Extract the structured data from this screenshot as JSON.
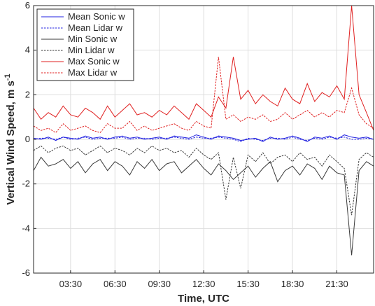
{
  "chart_data": {
    "type": "line",
    "xlabel": "Time, UTC",
    "ylabel": {
      "main": "Vertical Wind Speed, m s",
      "superscript": "-1"
    },
    "xlim": [
      "01:00",
      "23:59"
    ],
    "ylim": [
      -6,
      6
    ],
    "yticks": [
      -6,
      -4,
      -2,
      0,
      2,
      4,
      6
    ],
    "xticks": [
      "03:30",
      "06:30",
      "09:30",
      "12:30",
      "15:30",
      "18:30",
      "21:30"
    ],
    "grid": true,
    "legend_position": "top-left",
    "x": [
      "01:00",
      "01:30",
      "02:00",
      "02:30",
      "03:00",
      "03:30",
      "04:00",
      "04:30",
      "05:00",
      "05:30",
      "06:00",
      "06:30",
      "07:00",
      "07:30",
      "08:00",
      "08:30",
      "09:00",
      "09:30",
      "10:00",
      "10:30",
      "11:00",
      "11:30",
      "12:00",
      "12:30",
      "13:00",
      "13:30",
      "14:00",
      "14:30",
      "15:00",
      "15:30",
      "16:00",
      "16:30",
      "17:00",
      "17:30",
      "18:00",
      "18:30",
      "19:00",
      "19:30",
      "20:00",
      "20:30",
      "21:00",
      "21:30",
      "22:00",
      "22:30",
      "23:00",
      "23:30",
      "23:59"
    ],
    "series": [
      {
        "name": "Mean Sonic w",
        "color": "#2020e0",
        "dash": "solid",
        "values": [
          0.05,
          0.0,
          0.1,
          -0.05,
          0.1,
          0.05,
          0.0,
          0.15,
          0.05,
          0.1,
          0.0,
          0.1,
          0.15,
          0.05,
          0.1,
          0.0,
          0.05,
          0.1,
          0.0,
          0.15,
          0.1,
          0.05,
          0.2,
          0.1,
          0.0,
          0.15,
          0.1,
          0.05,
          -0.05,
          0.0,
          0.05,
          -0.1,
          0.1,
          0.0,
          0.05,
          0.15,
          0.05,
          -0.1,
          0.1,
          0.05,
          0.15,
          0.0,
          0.2,
          0.1,
          0.05,
          0.1,
          0.0
        ]
      },
      {
        "name": "Mean Lidar w",
        "color": "#2020e0",
        "dash": "dotted",
        "values": [
          0.0,
          0.05,
          0.05,
          0.0,
          0.1,
          0.0,
          0.05,
          0.1,
          0.0,
          0.05,
          0.05,
          0.05,
          0.1,
          0.0,
          0.05,
          0.05,
          0.0,
          0.05,
          0.05,
          0.1,
          0.05,
          0.0,
          0.1,
          0.05,
          0.05,
          0.1,
          0.05,
          0.0,
          -0.1,
          0.05,
          0.0,
          -0.05,
          0.05,
          0.05,
          0.0,
          0.1,
          0.0,
          -0.05,
          0.05,
          0.0,
          0.1,
          0.05,
          0.1,
          0.0,
          0.0,
          0.05,
          0.0
        ]
      },
      {
        "name": "Min Sonic w",
        "color": "#3a3a3a",
        "dash": "solid",
        "values": [
          -1.4,
          -0.8,
          -1.2,
          -1.1,
          -0.9,
          -1.3,
          -1.0,
          -1.5,
          -1.1,
          -0.9,
          -1.4,
          -1.0,
          -1.2,
          -1.6,
          -1.0,
          -1.3,
          -0.9,
          -1.4,
          -1.1,
          -1.0,
          -1.5,
          -1.2,
          -0.9,
          -1.3,
          -1.6,
          -1.1,
          -1.4,
          -1.8,
          -1.5,
          -1.2,
          -1.7,
          -1.3,
          -1.0,
          -1.9,
          -1.4,
          -1.2,
          -1.6,
          -1.1,
          -1.3,
          -1.8,
          -1.2,
          -1.5,
          -1.6,
          -5.2,
          -1.4,
          -1.0,
          -1.2
        ]
      },
      {
        "name": "Min Lidar w",
        "color": "#3a3a3a",
        "dash": "dotted",
        "values": [
          -0.5,
          -0.3,
          -0.6,
          -0.4,
          -0.3,
          -0.5,
          -0.4,
          -0.7,
          -0.5,
          -0.3,
          -0.6,
          -0.4,
          -0.5,
          -0.7,
          -0.4,
          -0.6,
          -0.3,
          -0.5,
          -0.4,
          -0.6,
          -0.5,
          -0.8,
          -0.4,
          -0.7,
          -0.9,
          -0.6,
          -2.7,
          -0.8,
          -2.2,
          -0.7,
          -1.0,
          -0.6,
          -1.1,
          -0.8,
          -0.7,
          -1.0,
          -0.6,
          -0.9,
          -0.8,
          -1.2,
          -0.7,
          -1.0,
          -1.3,
          -3.4,
          -0.9,
          -0.6,
          -0.8
        ]
      },
      {
        "name": "Max Sonic w",
        "color": "#e02020",
        "dash": "solid",
        "values": [
          1.4,
          0.9,
          1.2,
          1.0,
          1.5,
          1.1,
          1.0,
          1.4,
          1.2,
          0.9,
          1.5,
          1.0,
          1.3,
          1.6,
          1.1,
          1.2,
          1.0,
          1.3,
          1.1,
          1.5,
          1.2,
          0.9,
          1.6,
          1.3,
          1.0,
          1.9,
          1.4,
          3.7,
          1.8,
          2.2,
          1.6,
          2.0,
          1.7,
          1.5,
          2.3,
          1.8,
          1.6,
          2.5,
          1.7,
          2.1,
          1.9,
          2.4,
          1.8,
          6.0,
          2.0,
          1.2,
          0.4
        ]
      },
      {
        "name": "Max Lidar w",
        "color": "#e02020",
        "dash": "dotted",
        "values": [
          0.6,
          0.4,
          0.5,
          0.3,
          0.7,
          0.4,
          0.5,
          0.6,
          0.4,
          0.3,
          0.7,
          0.5,
          0.5,
          0.8,
          0.4,
          0.6,
          0.4,
          0.5,
          0.6,
          0.7,
          0.5,
          0.4,
          0.8,
          0.6,
          0.5,
          3.7,
          0.9,
          1.1,
          0.8,
          1.0,
          0.9,
          1.1,
          0.8,
          0.9,
          1.2,
          0.9,
          1.1,
          1.3,
          1.0,
          1.2,
          1.0,
          1.3,
          1.2,
          2.3,
          1.1,
          0.7,
          0.5
        ]
      }
    ]
  }
}
